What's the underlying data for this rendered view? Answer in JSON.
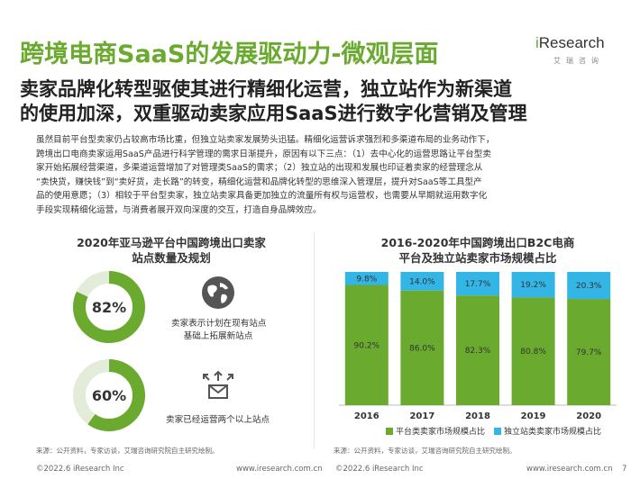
{
  "header": {
    "title": "跨境电商SaaS的发展驱动力-微观层面",
    "logo_main_i": "i",
    "logo_main_rest": "Research",
    "logo_sub": "艾瑞咨询"
  },
  "subtitle": {
    "line1": "卖家品牌化转型驱使其进行精细化运营，独立站作为新渠道",
    "line2": "的使用加深，双重驱动卖家应用SaaS进行数字化营销及管理"
  },
  "body": {
    "lines": [
      "虽然目前平台型卖家仍占较高市场比重，但独立站卖家发展势头迅猛。精细化运营诉求强烈和多渠道布局的业务动作下，",
      "跨境出口电商卖家运用SaaS产品进行科学管理的需求日渐提升，原因有以下三点：（1）去中心化的运营思路让平台型卖",
      "家开始拓展经营渠道，多渠道运营增加了对管理类SaaS的需求；（2）独立站的出现和发展也印证着卖家的经营理念从",
      "“卖快货，赚快钱”到“卖好货，走长路”的转变，精细化运营和品牌化转型的思维深入管理层，提升对SaaS等工具型产",
      "品的使用意愿；（3）相较于平台型卖家，独立站卖家具备更加独立的流量所有权与运营权，也需要从早期就运用数字化",
      "手段实现精细化运营，与消费者展开双向深度的交互，打造自身品牌效应。"
    ]
  },
  "left_panel": {
    "title_line1": "2020年亚马逊平台中国跨境出口卖家",
    "title_line2": "站点数量及规划",
    "stats": [
      {
        "percent": "82%",
        "value": 0.82,
        "desc_line1": "卖家表示计划在现有站点",
        "desc_line2": "基础上拓展新站点",
        "icon": "globe-icon"
      },
      {
        "percent": "60%",
        "value": 0.6,
        "desc_line1": "卖家已经运营两个以上站点",
        "icon": "mail-expand-icon"
      }
    ],
    "source": "来源：公开资料，专家访谈，艾瑞咨询研究院自主研究绘制。"
  },
  "right_panel": {
    "source": "来源：公开资料，专家访谈，艾瑞咨询研究院自主研究绘制。"
  },
  "chart_data": {
    "type": "bar",
    "stacked": true,
    "title_line1": "2016-2020年中国跨境出口B2C电商",
    "title_line2": "平台及独立站卖家市场规模占比",
    "categories": [
      "2016",
      "2017",
      "2018",
      "2019",
      "2020"
    ],
    "series": [
      {
        "name": "平台类卖家市场规模占比",
        "values": [
          90.2,
          86.0,
          82.3,
          80.8,
          79.7
        ],
        "labels": [
          "90.2%",
          "86.0%",
          "82.3%",
          "80.8%",
          "79.7%"
        ],
        "color": "#6aaa2e"
      },
      {
        "name": "独立站类卖家市场规模占比",
        "values": [
          9.8,
          14.0,
          17.7,
          19.2,
          20.3
        ],
        "labels": [
          "9.8%",
          "14.0%",
          "17.7%",
          "19.2%",
          "20.3%"
        ],
        "color": "#33b5e5"
      }
    ],
    "ylim": [
      0,
      100
    ],
    "legend": "bottom"
  },
  "footer": {
    "copyright_left": "©2022.6 iResearch Inc",
    "url_left": "www.iresearch.com.cn",
    "copyright_right": "©2022.6 iResearch Inc",
    "url_right": "www.iresearch.com.cn",
    "page": "7"
  },
  "colors": {
    "brand_green": "#6aaa2e",
    "accent_blue": "#33b5e5",
    "donut_track": "#e2ecd8",
    "icon_gray": "#555555"
  }
}
